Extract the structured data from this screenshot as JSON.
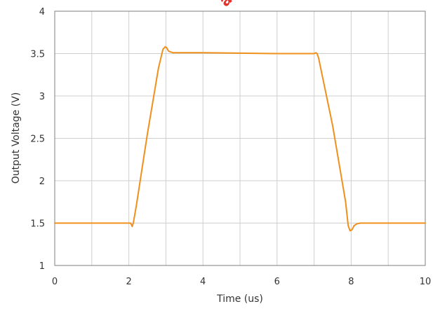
{
  "chart_data": {
    "type": "line",
    "title": "",
    "xlabel": "Time (us)",
    "ylabel": "Output Voltage (V)",
    "xlim": [
      0,
      10
    ],
    "ylim": [
      1,
      4
    ],
    "xticks": [
      0,
      2,
      4,
      6,
      8,
      10
    ],
    "yticks": [
      1,
      1.5,
      2,
      2.5,
      3,
      3.5,
      4
    ],
    "xtick_labels": [
      "0",
      "2",
      "4",
      "6",
      "8",
      "10"
    ],
    "ytick_labels": [
      "1",
      "1.5",
      "2",
      "2.5",
      "3",
      "3.5",
      "4"
    ],
    "grid": true,
    "series": [
      {
        "color": "#f0901c",
        "x": [
          0,
          2.0,
          2.05,
          2.09,
          2.12,
          2.2,
          2.5,
          2.8,
          2.92,
          2.98,
          3.02,
          3.07,
          3.12,
          3.2,
          3.35,
          4.0,
          5.0,
          6.0,
          7.0,
          7.05,
          7.08,
          7.12,
          7.5,
          7.85,
          7.92,
          7.97,
          8.02,
          8.08,
          8.15,
          8.25,
          8.5,
          9.0,
          10.0
        ],
        "y": [
          1.5,
          1.5,
          1.5,
          1.46,
          1.5,
          1.7,
          2.55,
          3.33,
          3.55,
          3.58,
          3.57,
          3.53,
          3.52,
          3.51,
          3.51,
          3.51,
          3.505,
          3.5,
          3.5,
          3.51,
          3.5,
          3.45,
          2.65,
          1.75,
          1.47,
          1.41,
          1.42,
          1.47,
          1.49,
          1.5,
          1.5,
          1.5,
          1.5
        ]
      }
    ]
  },
  "watermark": {
    "text": "ad",
    "color": "#e8332b"
  }
}
